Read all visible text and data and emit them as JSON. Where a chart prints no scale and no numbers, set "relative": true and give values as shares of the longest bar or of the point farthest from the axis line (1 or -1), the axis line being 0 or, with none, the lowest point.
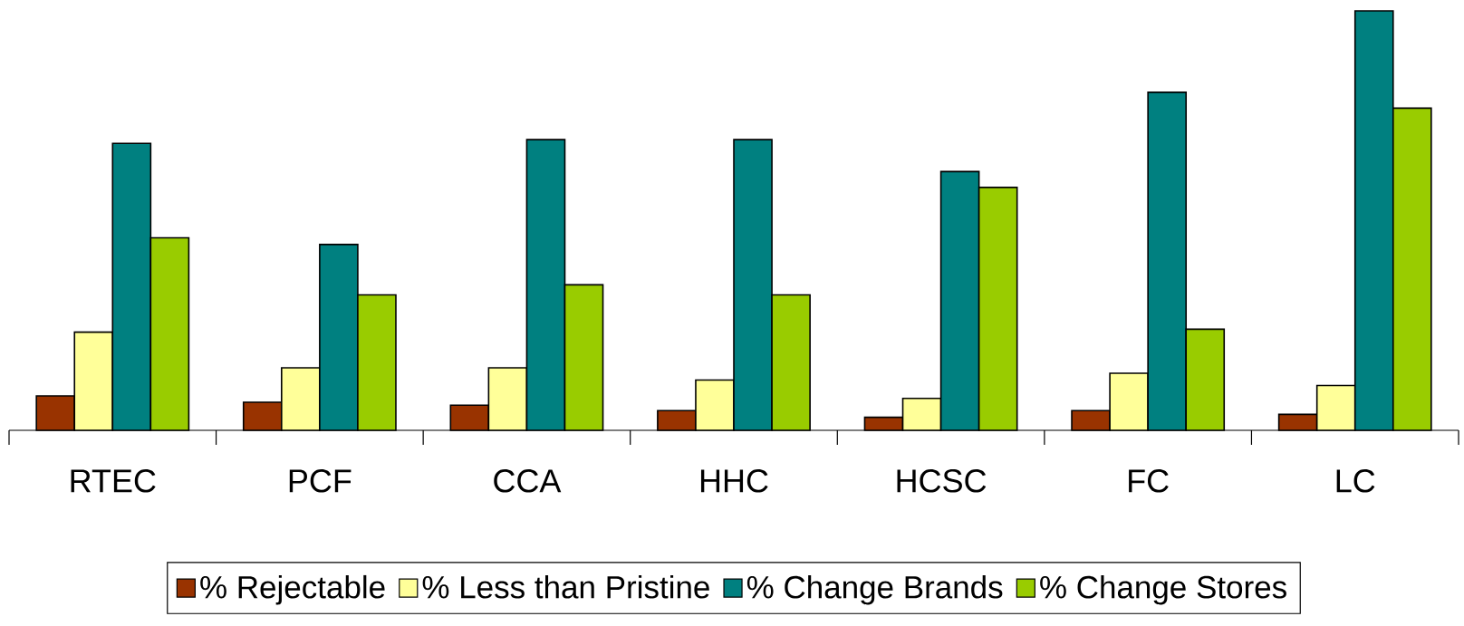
{
  "chart_data": {
    "type": "bar",
    "relative": true,
    "legend": "bottom",
    "categories": [
      "RTEC",
      "PCF",
      "CCA",
      "HHC",
      "HCSC",
      "FC",
      "LC"
    ],
    "series": [
      {
        "name": "% Rejectable",
        "color": "#993300",
        "values": [
          0.082,
          0.067,
          0.06,
          0.047,
          0.031,
          0.047,
          0.038
        ]
      },
      {
        "name": "% Less than Pristine",
        "color": "#ffff99",
        "values": [
          0.234,
          0.149,
          0.149,
          0.12,
          0.076,
          0.136,
          0.107
        ]
      },
      {
        "name": "% Change Brands",
        "color": "#008080",
        "values": [
          0.684,
          0.443,
          0.693,
          0.693,
          0.617,
          0.806,
          1
        ]
      },
      {
        "name": "% Change Stores",
        "color": "#99cc00",
        "values": [
          0.459,
          0.323,
          0.347,
          0.323,
          0.579,
          0.241,
          0.768
        ]
      }
    ]
  }
}
